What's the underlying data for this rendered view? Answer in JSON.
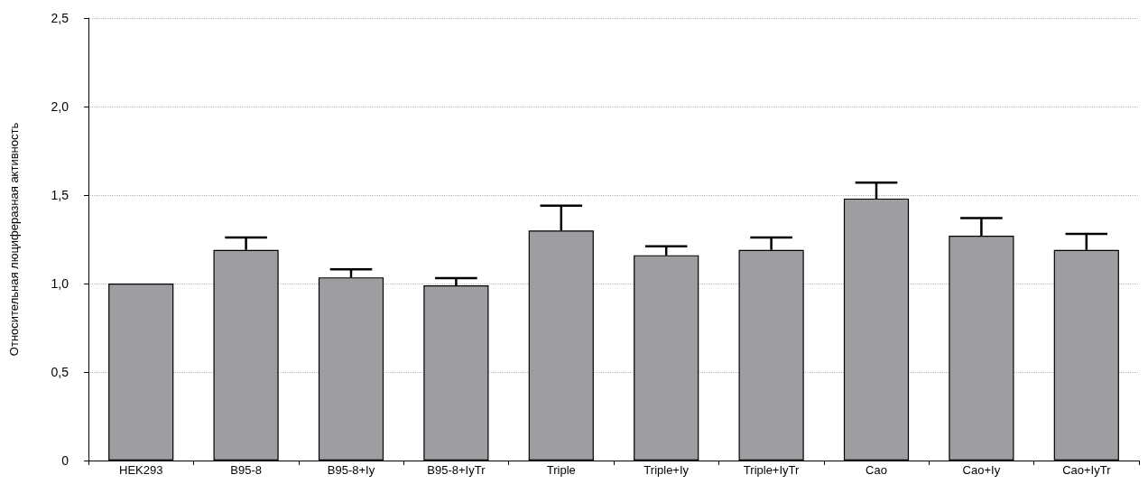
{
  "chart_data": {
    "type": "bar",
    "ylabel": "Относительная люциферазная активность",
    "categories": [
      "HEK293",
      "B95-8",
      "B95-8+Iy",
      "B95-8+IyTr",
      "Triple",
      "Triple+Iy",
      "Triple+IyTr",
      "Cao",
      "Cao+Iy",
      "Cao+IyTr"
    ],
    "values": [
      1.0,
      1.19,
      1.035,
      0.99,
      1.3,
      1.16,
      1.19,
      1.48,
      1.27,
      1.19
    ],
    "errors": [
      null,
      [
        1.19,
        1.26
      ],
      [
        1.035,
        1.08
      ],
      [
        0.99,
        1.03
      ],
      [
        1.3,
        1.44
      ],
      [
        1.16,
        1.21
      ],
      [
        1.19,
        1.26
      ],
      [
        1.48,
        1.57
      ],
      [
        1.27,
        1.37
      ],
      [
        1.19,
        1.28
      ]
    ],
    "color": "#9d9ea2",
    "ylim": [
      0,
      2.5
    ],
    "yticks": [
      0,
      {
        "value": 0.5,
        "label": "0,5"
      },
      {
        "value": 1,
        "label": "1,0"
      },
      {
        "value": 1.5,
        "label": "1,5"
      },
      {
        "value": 2,
        "label": "2,0"
      },
      {
        "value": 2.5,
        "label": "2,5"
      }
    ],
    "grid": "y"
  }
}
